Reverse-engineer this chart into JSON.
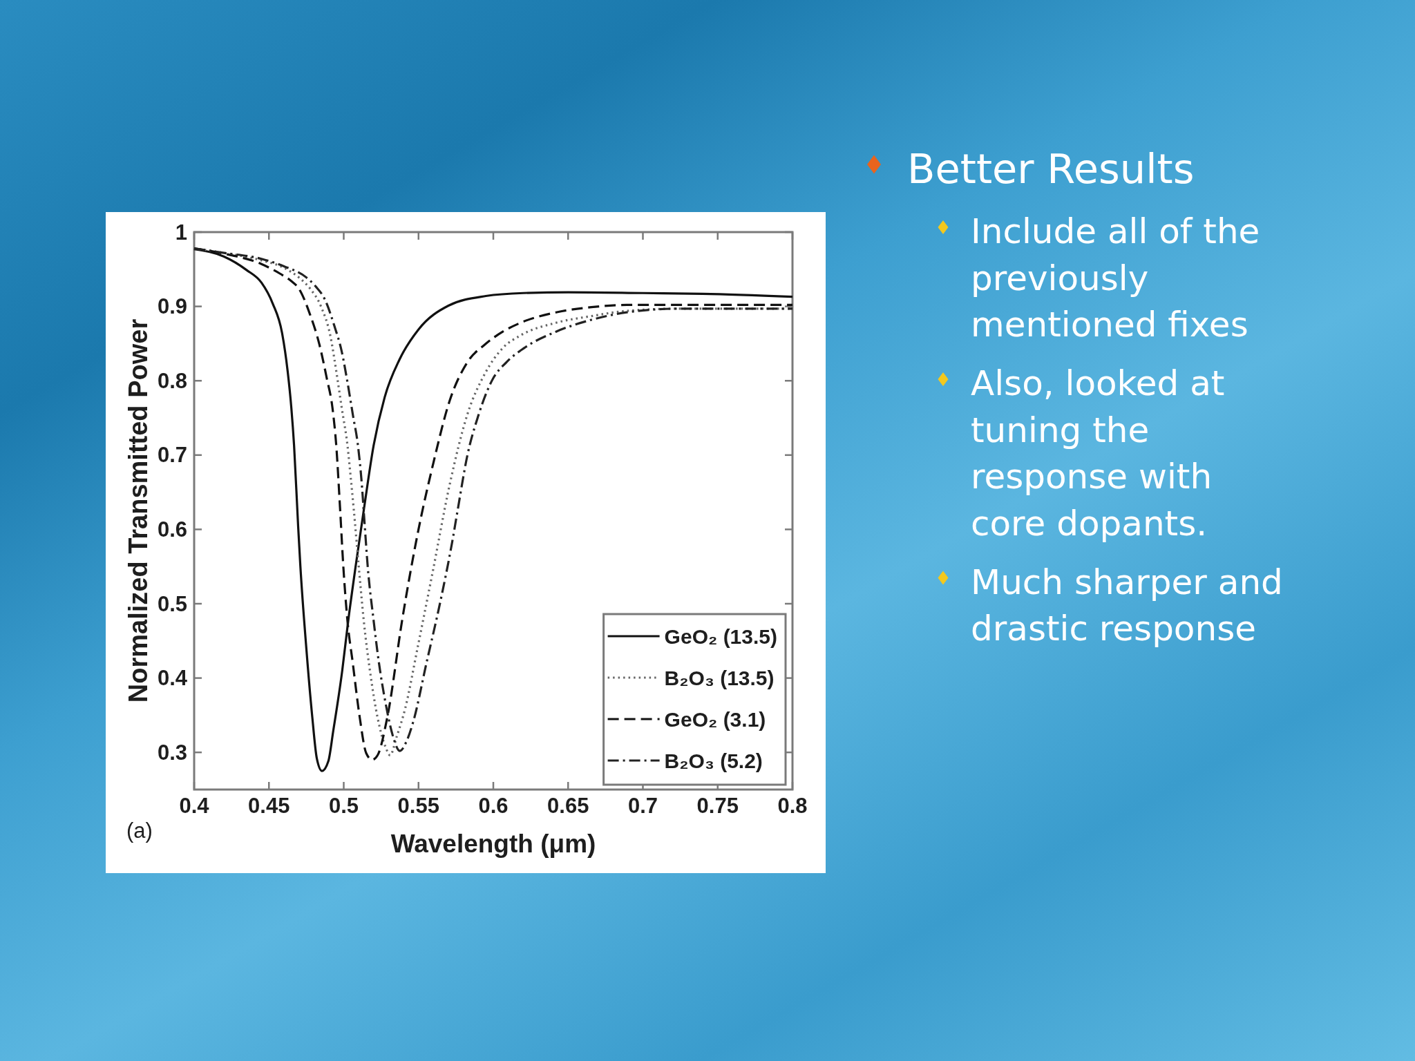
{
  "chart_data": [
    {
      "type": "line",
      "xlabel": "Wavelength (μm)",
      "ylabel": "Normalized Transmitted Power",
      "annotations": [
        "(a)"
      ],
      "xlim": [
        0.4,
        0.8
      ],
      "xticks": [
        0.4,
        0.45,
        0.5,
        0.55,
        0.6,
        0.65,
        0.7,
        0.75,
        0.8
      ],
      "ylim": [
        0.25,
        1
      ],
      "yticks": [
        0.3,
        0.4,
        0.5,
        0.6,
        0.7,
        0.8,
        0.9,
        1
      ],
      "legend": "bottom right",
      "series": [
        {
          "name": "GeO₂ (13.5)",
          "color": "#111111",
          "line_style": "solid",
          "x": [
            0.4,
            0.42,
            0.435,
            0.445,
            0.4525,
            0.4588,
            0.4625,
            0.465,
            0.4668,
            0.4695,
            0.471,
            0.475,
            0.479,
            0.482,
            0.4855,
            0.4897,
            0.493,
            0.499,
            0.503,
            0.508,
            0.5137,
            0.52,
            0.5274,
            0.5374,
            0.55,
            0.57,
            0.595,
            0.62,
            0.65,
            0.7,
            0.74,
            0.8
          ],
          "values": [
            0.977,
            0.967,
            0.949,
            0.932,
            0.904,
            0.864,
            0.813,
            0.763,
            0.713,
            0.605,
            0.551,
            0.44,
            0.347,
            0.292,
            0.275,
            0.288,
            0.329,
            0.41,
            0.477,
            0.551,
            0.63,
            0.713,
            0.778,
            0.829,
            0.869,
            0.901,
            0.914,
            0.918,
            0.919,
            0.918,
            0.917,
            0.913
          ]
        },
        {
          "name": "B₂O₃ (13.5)",
          "color": "#666666",
          "line_style": "dotted",
          "x": [
            0.4,
            0.42,
            0.445,
            0.46,
            0.47,
            0.4775,
            0.485,
            0.4912,
            0.495,
            0.4987,
            0.5025,
            0.505,
            0.5067,
            0.51,
            0.5134,
            0.518,
            0.5226,
            0.528,
            0.531,
            0.5354,
            0.5412,
            0.5494,
            0.5594,
            0.5708,
            0.5827,
            0.5945,
            0.6063,
            0.6182,
            0.6419,
            0.6656,
            0.6892,
            0.7248,
            0.8
          ],
          "values": [
            0.978,
            0.972,
            0.962,
            0.952,
            0.939,
            0.924,
            0.899,
            0.859,
            0.813,
            0.763,
            0.713,
            0.663,
            0.627,
            0.551,
            0.477,
            0.403,
            0.347,
            0.307,
            0.296,
            0.321,
            0.36,
            0.441,
            0.542,
            0.66,
            0.755,
            0.81,
            0.844,
            0.861,
            0.878,
            0.887,
            0.894,
            0.897,
            0.897
          ]
        },
        {
          "name": "GeO₂ (3.1)",
          "color": "#111111",
          "line_style": "dashed",
          "x": [
            0.4,
            0.42,
            0.445,
            0.4575,
            0.465,
            0.47,
            0.4775,
            0.4837,
            0.4887,
            0.4925,
            0.495,
            0.4975,
            0.4997,
            0.5025,
            0.506,
            0.5107,
            0.515,
            0.519,
            0.5226,
            0.5292,
            0.5393,
            0.55,
            0.56,
            0.5708,
            0.5827,
            0.5945,
            0.6063,
            0.6182,
            0.6419,
            0.6656,
            0.6892,
            0.8
          ],
          "values": [
            0.978,
            0.971,
            0.957,
            0.944,
            0.934,
            0.924,
            0.889,
            0.849,
            0.803,
            0.763,
            0.713,
            0.63,
            0.551,
            0.477,
            0.421,
            0.347,
            0.299,
            0.29,
            0.296,
            0.348,
            0.481,
            0.6,
            0.69,
            0.773,
            0.825,
            0.849,
            0.866,
            0.878,
            0.892,
            0.899,
            0.902,
            0.902
          ]
        },
        {
          "name": "B₂O₃ (5.2)",
          "color": "#222222",
          "line_style": "dashdot",
          "x": [
            0.4,
            0.42,
            0.445,
            0.46,
            0.475,
            0.4812,
            0.4875,
            0.4937,
            0.4987,
            0.5025,
            0.5062,
            0.5095,
            0.512,
            0.5137,
            0.516,
            0.52,
            0.5235,
            0.528,
            0.533,
            0.5375,
            0.542,
            0.5463,
            0.5554,
            0.5645,
            0.5725,
            0.576,
            0.5827,
            0.5898,
            0.5993,
            0.6088,
            0.6206,
            0.6419,
            0.6656,
            0.6892,
            0.7248,
            0.8
          ],
          "values": [
            0.978,
            0.972,
            0.964,
            0.954,
            0.939,
            0.927,
            0.909,
            0.874,
            0.839,
            0.798,
            0.753,
            0.713,
            0.663,
            0.615,
            0.551,
            0.477,
            0.421,
            0.366,
            0.321,
            0.302,
            0.315,
            0.34,
            0.421,
            0.502,
            0.583,
            0.624,
            0.7,
            0.752,
            0.801,
            0.825,
            0.844,
            0.866,
            0.882,
            0.892,
            0.897,
            0.897
          ]
        }
      ]
    },
    {
      "type": "other",
      "title": "Better Results",
      "annotations": [
        "Include all of the previously mentioned fixes",
        "Also, looked at tuning the response with core dopants.",
        "Much sharper and drastic response"
      ]
    }
  ]
}
